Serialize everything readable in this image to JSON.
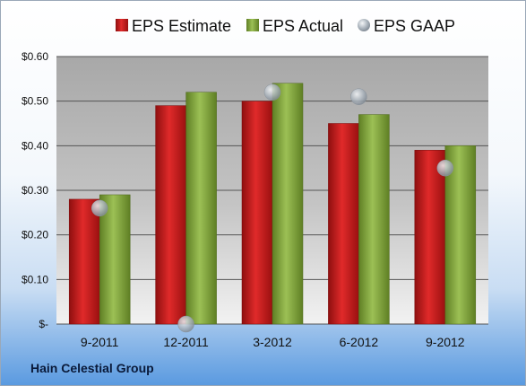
{
  "company": "Hain Celestial Group",
  "colors": {
    "estimate": "#d42020",
    "actual": "#8db045",
    "gaap": "#b0b8c0"
  },
  "chart_data": {
    "type": "bar",
    "categories": [
      "9-2011",
      "12-2011",
      "3-2012",
      "6-2012",
      "9-2012"
    ],
    "series": [
      {
        "name": "EPS Estimate",
        "values": [
          0.28,
          0.49,
          0.5,
          0.45,
          0.39
        ]
      },
      {
        "name": "EPS Actual",
        "values": [
          0.29,
          0.52,
          0.54,
          0.47,
          0.4
        ]
      },
      {
        "name": "EPS GAAP",
        "values": [
          0.26,
          0.0,
          0.52,
          0.51,
          0.35
        ]
      }
    ],
    "ylim": [
      0,
      0.6
    ],
    "yticks": [
      "$-",
      "$0.10",
      "$0.20",
      "$0.30",
      "$0.40",
      "$0.50",
      "$0.60"
    ],
    "legend": "top",
    "grid": true
  }
}
